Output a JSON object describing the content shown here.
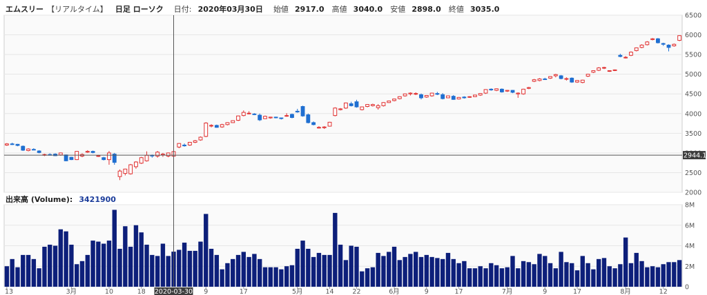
{
  "header": {
    "name": "エムスリー",
    "mode": "【リアルタイム】",
    "kind": "日足 ローソク",
    "date_label": "日付:",
    "date": "2020年03月30日",
    "open_label": "始値",
    "open": "2917.0",
    "high_label": "高値",
    "high": "3040.0",
    "low_label": "安値",
    "low": "2898.0",
    "close_label": "終値",
    "close": "3035.0"
  },
  "volume_header": {
    "label": "出来高 (Volume):",
    "value": "3421900"
  },
  "crosshair": {
    "price_label": "2944.1",
    "date_label": "2020-03-30"
  },
  "colors": {
    "up": "#e03030",
    "down": "#1f6fd1",
    "volume": "#0d1f7a",
    "crosshair": "#555555",
    "grid": "#e6e6e6",
    "plot_bg": "#fafafa"
  },
  "chart_data": [
    {
      "type": "candlestick",
      "y_ticks": [
        "6500",
        "6000",
        "5500",
        "5000",
        "4500",
        "4000",
        "3500",
        "3000",
        "2500",
        "2000"
      ],
      "ylim": [
        2000,
        6500
      ],
      "grid": true,
      "candles": [
        [
          3200,
          3250,
          3180,
          3230
        ],
        [
          3230,
          3260,
          3200,
          3215
        ],
        [
          3220,
          3230,
          3170,
          3190
        ],
        [
          3170,
          3190,
          3050,
          3070
        ],
        [
          3060,
          3120,
          3040,
          3100
        ],
        [
          3090,
          3120,
          3070,
          3080
        ],
        [
          3050,
          3070,
          2990,
          3010
        ],
        [
          2950,
          2980,
          2920,
          2960
        ],
        [
          2960,
          2990,
          2940,
          2950
        ],
        [
          2970,
          2990,
          2920,
          2930
        ],
        [
          2950,
          3010,
          2930,
          3000
        ],
        [
          2950,
          2960,
          2790,
          2800
        ],
        [
          2890,
          2900,
          2820,
          2830
        ],
        [
          2830,
          3050,
          2820,
          3040
        ],
        [
          2920,
          2990,
          2890,
          2960
        ],
        [
          3020,
          3070,
          3000,
          3040
        ],
        [
          3040,
          3060,
          2990,
          3010
        ],
        [
          2920,
          2950,
          2900,
          2930
        ],
        [
          2880,
          2900,
          2810,
          2830
        ],
        [
          2830,
          3050,
          2700,
          3000
        ],
        [
          2970,
          3000,
          2700,
          2760
        ],
        [
          2400,
          2580,
          2310,
          2540
        ],
        [
          2480,
          2600,
          2430,
          2590
        ],
        [
          2470,
          2720,
          2450,
          2700
        ],
        [
          2650,
          2790,
          2600,
          2770
        ],
        [
          2740,
          2900,
          2720,
          2880
        ],
        [
          2800,
          3040,
          2780,
          2940
        ],
        [
          2940,
          2960,
          2880,
          2930
        ],
        [
          2920,
          3050,
          2880,
          3020
        ],
        [
          2950,
          3000,
          2900,
          2970
        ],
        [
          2920,
          3010,
          2890,
          3000
        ],
        [
          2917,
          3040,
          2898,
          3035
        ],
        [
          3150,
          3250,
          3120,
          3240
        ],
        [
          3200,
          3240,
          3160,
          3180
        ],
        [
          3200,
          3280,
          3180,
          3270
        ],
        [
          3270,
          3330,
          3250,
          3310
        ],
        [
          3330,
          3420,
          3310,
          3400
        ],
        [
          3420,
          3780,
          3400,
          3760
        ],
        [
          3700,
          3730,
          3650,
          3700
        ],
        [
          3700,
          3720,
          3640,
          3650
        ],
        [
          3660,
          3740,
          3640,
          3720
        ],
        [
          3720,
          3780,
          3700,
          3770
        ],
        [
          3770,
          3830,
          3760,
          3820
        ],
        [
          3830,
          3950,
          3810,
          3940
        ],
        [
          3950,
          4080,
          3930,
          4030
        ],
        [
          4000,
          4060,
          3980,
          4010
        ],
        [
          3990,
          4010,
          3960,
          3980
        ],
        [
          3960,
          4000,
          3810,
          3840
        ],
        [
          3870,
          3950,
          3860,
          3930
        ],
        [
          3890,
          3920,
          3870,
          3910
        ],
        [
          3910,
          3920,
          3880,
          3900
        ],
        [
          3890,
          3900,
          3850,
          3880
        ],
        [
          3950,
          4010,
          3920,
          3950
        ],
        [
          3980,
          4000,
          3880,
          3900
        ],
        [
          4060,
          4120,
          4020,
          4040
        ],
        [
          4180,
          4200,
          3920,
          3940
        ],
        [
          3970,
          4000,
          3750,
          3770
        ],
        [
          3770,
          3800,
          3700,
          3720
        ],
        [
          3640,
          3680,
          3620,
          3650
        ],
        [
          3640,
          3680,
          3610,
          3660
        ],
        [
          3680,
          3790,
          3670,
          3780
        ],
        [
          3950,
          4160,
          3930,
          4140
        ],
        [
          4100,
          4140,
          4080,
          4120
        ],
        [
          4140,
          4280,
          4120,
          4270
        ],
        [
          4250,
          4300,
          4180,
          4200
        ],
        [
          4300,
          4350,
          4150,
          4170
        ],
        [
          4100,
          4180,
          4080,
          4170
        ],
        [
          4180,
          4240,
          4160,
          4230
        ],
        [
          4200,
          4250,
          4180,
          4230
        ],
        [
          4150,
          4240,
          4100,
          4200
        ],
        [
          4200,
          4290,
          4180,
          4280
        ],
        [
          4280,
          4330,
          4270,
          4320
        ],
        [
          4330,
          4380,
          4310,
          4370
        ],
        [
          4380,
          4440,
          4360,
          4430
        ],
        [
          4450,
          4510,
          4430,
          4500
        ],
        [
          4500,
          4540,
          4460,
          4520
        ],
        [
          4500,
          4540,
          4470,
          4510
        ],
        [
          4480,
          4510,
          4360,
          4400
        ],
        [
          4420,
          4470,
          4400,
          4460
        ],
        [
          4450,
          4530,
          4430,
          4520
        ],
        [
          4510,
          4550,
          4470,
          4490
        ],
        [
          4480,
          4520,
          4360,
          4380
        ],
        [
          4400,
          4460,
          4390,
          4450
        ],
        [
          4440,
          4470,
          4350,
          4360
        ],
        [
          4370,
          4420,
          4360,
          4410
        ],
        [
          4420,
          4440,
          4380,
          4400
        ],
        [
          4420,
          4440,
          4400,
          4430
        ],
        [
          4430,
          4480,
          4420,
          4470
        ],
        [
          4470,
          4520,
          4450,
          4510
        ],
        [
          4520,
          4620,
          4500,
          4610
        ],
        [
          4620,
          4640,
          4580,
          4600
        ],
        [
          4590,
          4640,
          4570,
          4630
        ],
        [
          4620,
          4640,
          4530,
          4550
        ],
        [
          4570,
          4600,
          4550,
          4590
        ],
        [
          4590,
          4600,
          4520,
          4540
        ],
        [
          4500,
          4540,
          4400,
          4520
        ],
        [
          4500,
          4630,
          4480,
          4620
        ],
        [
          4640,
          4680,
          4620,
          4660
        ],
        [
          4820,
          4880,
          4800,
          4860
        ],
        [
          4840,
          4900,
          4820,
          4880
        ],
        [
          4880,
          4910,
          4860,
          4870
        ],
        [
          4900,
          4950,
          4880,
          4940
        ],
        [
          4960,
          5010,
          4920,
          4990
        ],
        [
          4960,
          4980,
          4870,
          4890
        ],
        [
          4870,
          4920,
          4840,
          4890
        ],
        [
          4900,
          4920,
          4780,
          4800
        ],
        [
          4800,
          4850,
          4780,
          4840
        ],
        [
          4790,
          4860,
          4770,
          4850
        ],
        [
          4950,
          5010,
          4930,
          5000
        ],
        [
          5050,
          5100,
          5030,
          5090
        ],
        [
          5100,
          5180,
          5080,
          5160
        ],
        [
          5160,
          5190,
          5130,
          5170
        ],
        [
          5080,
          5100,
          5060,
          5090
        ],
        [
          5100,
          5120,
          5080,
          5110
        ],
        [
          5480,
          5520,
          5430,
          5450
        ],
        [
          5420,
          5460,
          5400,
          5430
        ],
        [
          5480,
          5580,
          5460,
          5560
        ],
        [
          5600,
          5680,
          5580,
          5670
        ],
        [
          5680,
          5760,
          5660,
          5740
        ],
        [
          5750,
          5840,
          5730,
          5820
        ],
        [
          5880,
          5920,
          5860,
          5900
        ],
        [
          5900,
          5920,
          5780,
          5800
        ],
        [
          5780,
          5800,
          5720,
          5760
        ],
        [
          5740,
          5760,
          5580,
          5680
        ],
        [
          5720,
          5780,
          5700,
          5760
        ],
        [
          5860,
          5990,
          5840,
          5980
        ]
      ]
    },
    {
      "type": "bar",
      "title": "出来高 (Volume)",
      "y_ticks": [
        "8M",
        "6M",
        "4M",
        "2M",
        "0"
      ],
      "ylim": [
        0,
        8000000
      ],
      "x_ticks": [
        {
          "index": 0,
          "label": "13"
        },
        {
          "index": 12,
          "label": "3月"
        },
        {
          "index": 19,
          "label": "10"
        },
        {
          "index": 25,
          "label": "18"
        },
        {
          "index": 37,
          "label": "9"
        },
        {
          "index": 44,
          "label": "17"
        },
        {
          "index": 54,
          "label": "5月"
        },
        {
          "index": 60,
          "label": "14"
        },
        {
          "index": 65,
          "label": "22"
        },
        {
          "index": 72,
          "label": "6月"
        },
        {
          "index": 78,
          "label": "9"
        },
        {
          "index": 84,
          "label": "17"
        },
        {
          "index": 93,
          "label": "7月"
        },
        {
          "index": 100,
          "label": "9"
        },
        {
          "index": 106,
          "label": "17"
        },
        {
          "index": 115,
          "label": "8月"
        },
        {
          "index": 122,
          "label": "12"
        }
      ],
      "values": [
        2000000,
        2700000,
        1900000,
        3100000,
        3100000,
        2700000,
        1800000,
        3900000,
        4100000,
        4000000,
        5600000,
        5400000,
        4100000,
        2200000,
        2500000,
        3100000,
        4500000,
        4400000,
        4200000,
        4500000,
        7500000,
        3700000,
        5900000,
        3900000,
        6000000,
        5300000,
        4100000,
        3100000,
        3000000,
        4200000,
        3000000,
        3421900,
        3600000,
        4300000,
        3500000,
        3500000,
        4400000,
        7100000,
        3700000,
        3100000,
        1700000,
        2300000,
        2700000,
        3100000,
        3400000,
        2900000,
        3200000,
        2700000,
        1900000,
        1900000,
        1900000,
        1700000,
        2000000,
        2100000,
        3700000,
        4500000,
        3700000,
        2900000,
        3300000,
        3100000,
        3100000,
        7200000,
        4100000,
        2600000,
        4000000,
        3900000,
        1500000,
        1800000,
        1900000,
        3300000,
        3000000,
        3400000,
        3900000,
        2600000,
        2900000,
        3200000,
        3400000,
        2900000,
        3100000,
        2900000,
        2800000,
        2700000,
        3300000,
        2700000,
        2300000,
        2500000,
        1800000,
        1800000,
        2000000,
        1800000,
        2300000,
        2100000,
        1800000,
        1900000,
        3000000,
        1800000,
        2500000,
        2400000,
        2200000,
        3200000,
        3000000,
        2300000,
        1800000,
        3400000,
        2400000,
        2300000,
        1600000,
        3000000,
        2300000,
        1700000,
        2700000,
        2800000,
        2000000,
        1800000,
        2200000,
        4800000,
        2300000,
        3300000,
        2500000,
        1900000,
        2000000,
        1900000,
        2200000,
        2400000,
        2400000,
        2600000
      ]
    }
  ]
}
